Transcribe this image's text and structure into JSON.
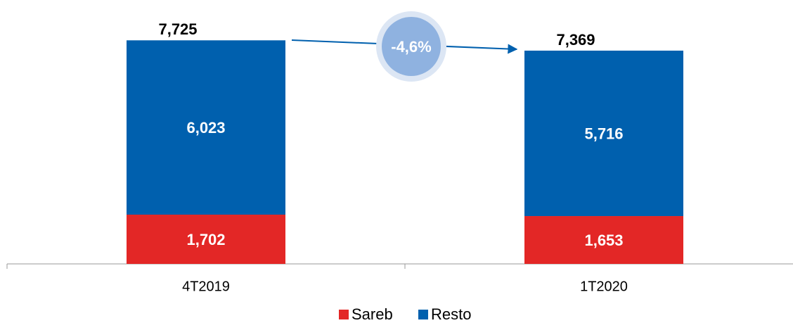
{
  "chart_data": {
    "type": "stacked_bar",
    "categories": [
      "4T2019",
      "1T2020"
    ],
    "series": [
      {
        "name": "Sareb",
        "color": "#e32726",
        "values": [
          1702,
          1653
        ],
        "value_labels": [
          "1,702",
          "1,653"
        ]
      },
      {
        "name": "Resto",
        "color": "#0060ae",
        "values": [
          6023,
          5716
        ],
        "value_labels": [
          "6,023",
          "5,716"
        ]
      }
    ],
    "totals": [
      7725,
      7369
    ],
    "total_labels": [
      "7,725",
      "7,369"
    ],
    "annotation": "-4,6%",
    "ylim": [
      0,
      8000
    ]
  }
}
